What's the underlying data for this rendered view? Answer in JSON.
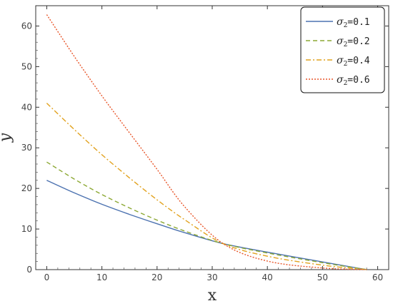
{
  "chart_data": {
    "type": "line",
    "xlabel": "x",
    "ylabel": "y",
    "xlim": [
      -2,
      62
    ],
    "ylim": [
      0,
      65
    ],
    "xticks": [
      0,
      10,
      20,
      30,
      40,
      50,
      60
    ],
    "yticks": [
      0,
      10,
      20,
      30,
      40,
      50,
      60
    ],
    "grid": false,
    "legend_position": "top-right",
    "series": [
      {
        "name": "σ2=0.1",
        "legend_symbol": "σ",
        "legend_sub": "2",
        "legend_value": "=0.1",
        "color": "#4c72b0",
        "dash": "solid",
        "x": [
          0,
          5,
          10,
          15,
          20,
          25,
          32,
          40,
          50,
          58
        ],
        "y": [
          22.0,
          18.9,
          16.1,
          13.6,
          11.3,
          9.1,
          6.4,
          4.3,
          1.9,
          0
        ]
      },
      {
        "name": "σ2=0.2",
        "legend_symbol": "σ",
        "legend_sub": "2",
        "legend_value": "=0.2",
        "color": "#8ca833",
        "dash": "dashed",
        "x": [
          0,
          5,
          10,
          15,
          20,
          25,
          32,
          40,
          50,
          58
        ],
        "y": [
          26.5,
          22.3,
          18.5,
          15.2,
          12.2,
          9.5,
          6.4,
          4.1,
          1.7,
          0
        ]
      },
      {
        "name": "σ2=0.4",
        "legend_symbol": "σ",
        "legend_sub": "2",
        "legend_value": "=0.4",
        "color": "#e2a21e",
        "dash": "dashdot",
        "x": [
          0,
          5,
          10,
          15,
          20,
          25,
          32,
          40,
          50,
          58
        ],
        "y": [
          41.0,
          34.5,
          28.3,
          22.6,
          17.2,
          12.3,
          6.4,
          3.3,
          1.1,
          0
        ]
      },
      {
        "name": "σ2=0.6",
        "legend_symbol": "σ",
        "legend_sub": "2",
        "legend_value": "=0.6",
        "color": "#e8562a",
        "dash": "dotted",
        "x": [
          0,
          5,
          10,
          15,
          20,
          25,
          32,
          40,
          50,
          58
        ],
        "y": [
          62.8,
          52.5,
          42.8,
          33.7,
          24.7,
          15.5,
          6.4,
          2.1,
          0.4,
          0
        ]
      }
    ]
  }
}
